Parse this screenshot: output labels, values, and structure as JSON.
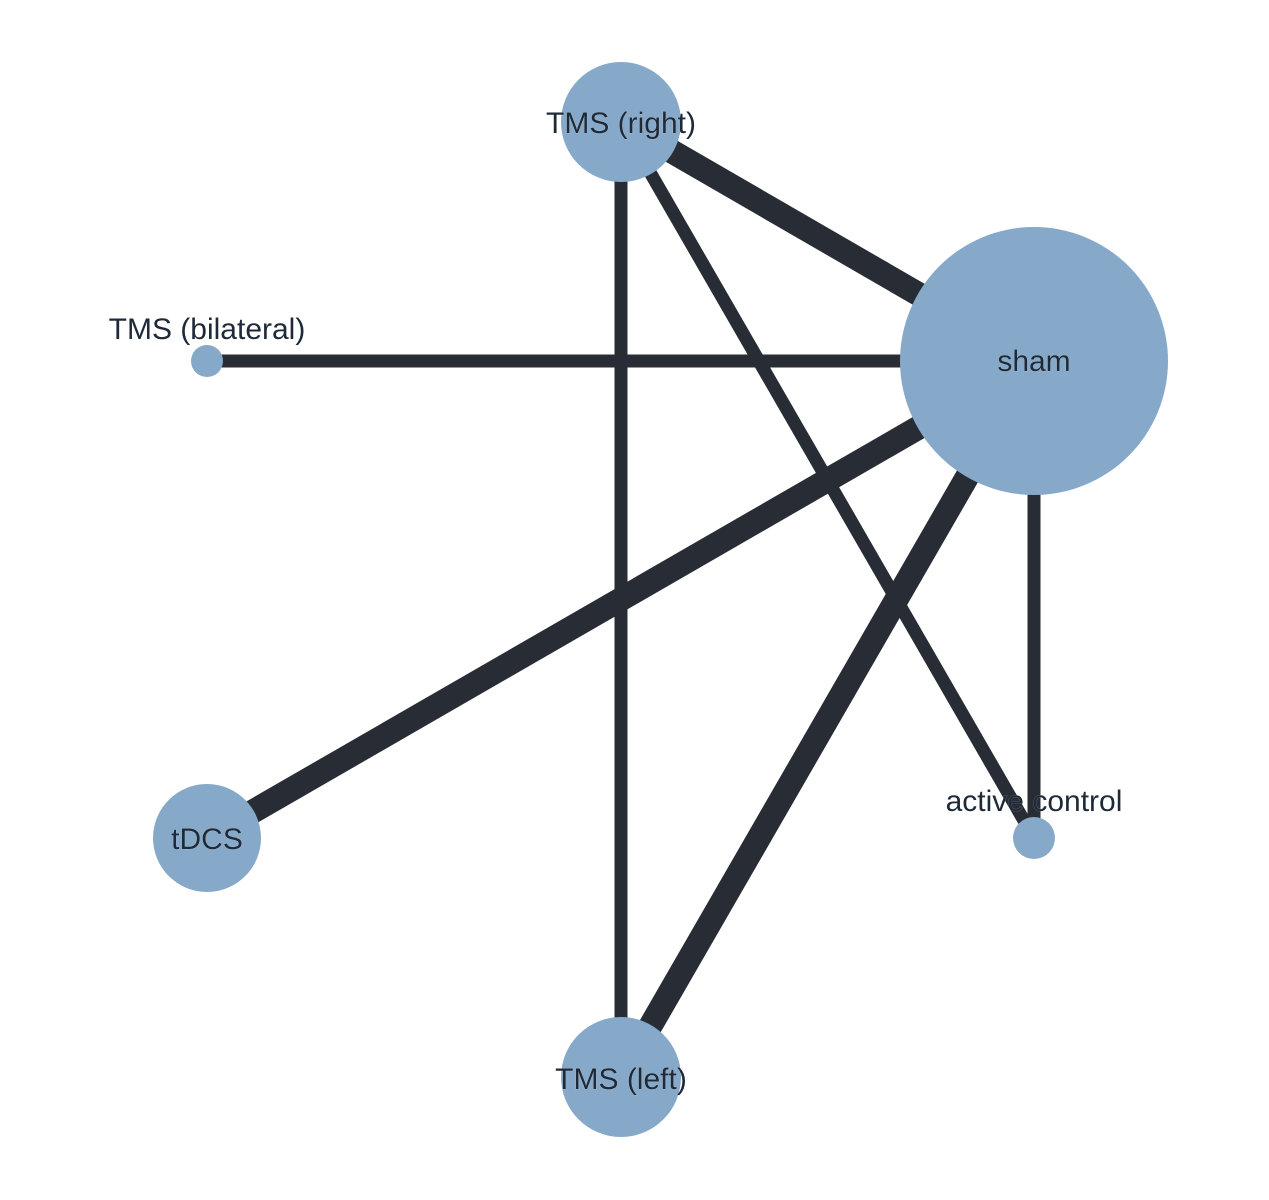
{
  "diagram": {
    "type": "network-graph",
    "node_color": "#86a9c9",
    "edge_color": "#282c35",
    "label_color": "#1f2a38",
    "nodes": [
      {
        "id": "tms_right",
        "label": "TMS (right)",
        "size": 3
      },
      {
        "id": "sham",
        "label": "sham",
        "size": 10
      },
      {
        "id": "tms_bilateral",
        "label": "TMS (bilateral)",
        "size": 1
      },
      {
        "id": "tdcs",
        "label": "tDCS",
        "size": 3
      },
      {
        "id": "active_control",
        "label": "active control",
        "size": 1
      },
      {
        "id": "tms_left",
        "label": "TMS (left)",
        "size": 3
      }
    ],
    "edges": [
      {
        "source": "tms_right",
        "target": "sham",
        "weight": 3
      },
      {
        "source": "tms_right",
        "target": "tms_left",
        "weight": 1
      },
      {
        "source": "tms_right",
        "target": "active_control",
        "weight": 1
      },
      {
        "source": "tms_bilateral",
        "target": "sham",
        "weight": 1
      },
      {
        "source": "tdcs",
        "target": "sham",
        "weight": 3
      },
      {
        "source": "tms_left",
        "target": "sham",
        "weight": 3
      },
      {
        "source": "sham",
        "target": "active_control",
        "weight": 1
      }
    ]
  }
}
